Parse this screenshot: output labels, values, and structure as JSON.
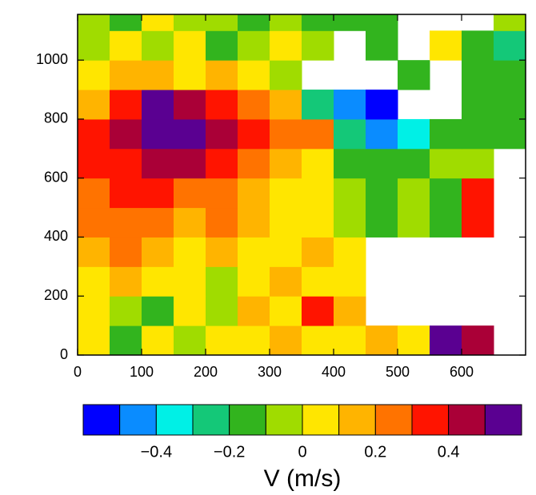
{
  "chart_data": {
    "type": "heatmap",
    "x_edges": [
      0,
      50,
      100,
      150,
      200,
      250,
      300,
      350,
      400,
      450,
      500,
      550,
      600,
      650,
      700
    ],
    "y_edges": [
      0,
      100,
      200,
      300,
      400,
      500,
      600,
      700,
      800,
      900,
      1000,
      1100,
      1155
    ],
    "values": [
      [
        0.05,
        -0.15,
        0.05,
        -0.05,
        0.05,
        0.05,
        0.15,
        0.05,
        0.05,
        0.15,
        0.05,
        0.55,
        0.45,
        null
      ],
      [
        0.05,
        -0.05,
        -0.15,
        0.05,
        -0.05,
        0.15,
        0.05,
        0.35,
        0.15,
        null,
        null,
        null,
        null,
        null
      ],
      [
        0.05,
        0.15,
        0.05,
        0.05,
        -0.05,
        0.05,
        0.15,
        0.05,
        0.05,
        null,
        null,
        null,
        null,
        null
      ],
      [
        0.15,
        0.25,
        0.15,
        0.05,
        0.15,
        0.05,
        0.05,
        0.15,
        0.05,
        null,
        null,
        null,
        null,
        null
      ],
      [
        0.25,
        0.25,
        0.25,
        0.15,
        0.25,
        0.15,
        0.05,
        0.05,
        -0.05,
        -0.15,
        -0.05,
        -0.15,
        0.35,
        null
      ],
      [
        0.25,
        0.35,
        0.35,
        0.25,
        0.25,
        0.15,
        0.05,
        0.05,
        -0.05,
        -0.15,
        -0.05,
        -0.15,
        0.35,
        null
      ],
      [
        0.35,
        0.35,
        0.45,
        0.45,
        0.35,
        0.25,
        0.15,
        0.05,
        -0.15,
        -0.15,
        -0.15,
        -0.05,
        -0.05,
        null
      ],
      [
        0.35,
        0.45,
        0.55,
        0.55,
        0.45,
        0.35,
        0.25,
        0.25,
        -0.25,
        -0.45,
        -0.35,
        -0.15,
        -0.15,
        -0.15
      ],
      [
        0.15,
        0.35,
        0.55,
        0.45,
        0.35,
        0.25,
        0.15,
        -0.25,
        -0.45,
        -0.55,
        null,
        null,
        -0.15,
        -0.15
      ],
      [
        0.05,
        0.15,
        0.15,
        0.05,
        0.15,
        0.05,
        -0.05,
        null,
        null,
        null,
        -0.15,
        null,
        -0.15,
        -0.15
      ],
      [
        -0.05,
        0.05,
        -0.05,
        0.05,
        -0.15,
        -0.05,
        0.05,
        -0.05,
        null,
        -0.15,
        null,
        0.05,
        -0.15,
        -0.25
      ],
      [
        -0.05,
        -0.15,
        0.05,
        -0.05,
        -0.05,
        -0.15,
        -0.05,
        -0.15,
        -0.15,
        -0.15,
        null,
        null,
        null,
        -0.05
      ]
    ],
    "xlim": [
      0,
      700
    ],
    "ylim": [
      0,
      1155
    ],
    "xticks": [
      0,
      100,
      200,
      300,
      400,
      500,
      600
    ],
    "yticks": [
      0,
      200,
      400,
      600,
      800,
      1000
    ],
    "colorbar": {
      "levels": [
        -0.6,
        -0.5,
        -0.4,
        -0.3,
        -0.2,
        -0.1,
        0,
        0.1,
        0.2,
        0.3,
        0.4,
        0.5,
        0.6
      ],
      "colors": [
        "#0000ff",
        "#0a8cff",
        "#00f0e6",
        "#14c878",
        "#32b41e",
        "#a0dc00",
        "#ffe600",
        "#ffb400",
        "#ff7300",
        "#ff1400",
        "#aa0037",
        "#5a0091"
      ],
      "ticks": [
        {
          "value": -0.4,
          "label": "−0.4"
        },
        {
          "value": -0.2,
          "label": "−0.2"
        },
        0,
        0.2,
        0.4
      ],
      "label": "V (m/s)"
    }
  }
}
